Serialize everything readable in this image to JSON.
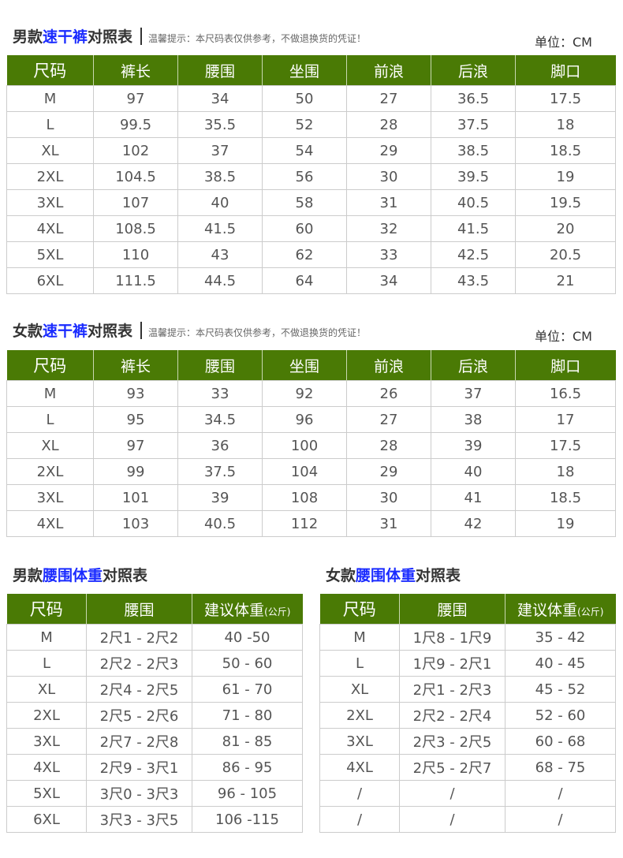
{
  "sections": [
    {
      "title_pre": "男款",
      "title_hl": "速干裤",
      "title_post": "对照表",
      "note": "温馨提示：本尺码表仅供参考，不做退换货的凭证！",
      "unit": "单位：CM",
      "headers": [
        "尺码",
        "裤长",
        "腰围",
        "坐围",
        "前浪",
        "后浪",
        "脚口"
      ],
      "rows": [
        [
          "M",
          "97",
          "34",
          "50",
          "27",
          "36.5",
          "17.5"
        ],
        [
          "L",
          "99.5",
          "35.5",
          "52",
          "28",
          "37.5",
          "18"
        ],
        [
          "XL",
          "102",
          "37",
          "54",
          "29",
          "38.5",
          "18.5"
        ],
        [
          "2XL",
          "104.5",
          "38.5",
          "56",
          "30",
          "39.5",
          "19"
        ],
        [
          "3XL",
          "107",
          "40",
          "58",
          "31",
          "40.5",
          "19.5"
        ],
        [
          "4XL",
          "108.5",
          "41.5",
          "60",
          "32",
          "41.5",
          "20"
        ],
        [
          "5XL",
          "110",
          "43",
          "62",
          "33",
          "42.5",
          "20.5"
        ],
        [
          "6XL",
          "111.5",
          "44.5",
          "64",
          "34",
          "43.5",
          "21"
        ]
      ]
    },
    {
      "title_pre": "女款",
      "title_hl": "速干裤",
      "title_post": "对照表",
      "note": "温馨提示：本尺码表仅供参考，不做退换货的凭证！",
      "unit": "单位：CM",
      "headers": [
        "尺码",
        "裤长",
        "腰围",
        "坐围",
        "前浪",
        "后浪",
        "脚口"
      ],
      "rows": [
        [
          "M",
          "93",
          "33",
          "92",
          "26",
          "37",
          "16.5"
        ],
        [
          "L",
          "95",
          "34.5",
          "96",
          "27",
          "38",
          "17"
        ],
        [
          "XL",
          "97",
          "36",
          "100",
          "28",
          "39",
          "17.5"
        ],
        [
          "2XL",
          "99",
          "37.5",
          "104",
          "29",
          "40",
          "18"
        ],
        [
          "3XL",
          "101",
          "39",
          "108",
          "30",
          "41",
          "18.5"
        ],
        [
          "4XL",
          "103",
          "40.5",
          "112",
          "31",
          "42",
          "19"
        ]
      ]
    },
    {
      "title_pre": "男款",
      "title_hl": "腰围体重",
      "title_post": "对照表",
      "headers": [
        "尺码",
        "腰围",
        "建议体重",
        "(公斤)"
      ],
      "rows": [
        [
          "M",
          "2尺1 - 2尺2",
          "40 -50"
        ],
        [
          "L",
          "2尺2 - 2尺3",
          "50 - 60"
        ],
        [
          "XL",
          "2尺4 - 2尺5",
          "61 - 70"
        ],
        [
          "2XL",
          "2尺5 - 2尺6",
          "71 - 80"
        ],
        [
          "3XL",
          "2尺7 - 2尺8",
          "81 - 85"
        ],
        [
          "4XL",
          "2尺9 - 3尺1",
          "86 - 95"
        ],
        [
          "5XL",
          "3尺0 - 3尺3",
          "96 - 105"
        ],
        [
          "6XL",
          "3尺3 - 3尺5",
          "106 -115"
        ]
      ]
    },
    {
      "title_pre": "女款",
      "title_hl": "腰围体重",
      "title_post": "对照表",
      "headers": [
        "尺码",
        "腰围",
        "建议体重",
        "(公斤)"
      ],
      "rows": [
        [
          "M",
          "1尺8 - 1尺9",
          "35 - 42"
        ],
        [
          "L",
          "1尺9 - 2尺1",
          "40 - 45"
        ],
        [
          "XL",
          "2尺1 - 2尺3",
          "45 - 52"
        ],
        [
          "2XL",
          "2尺2 - 2尺4",
          "52 - 60"
        ],
        [
          "3XL",
          "2尺3 - 2尺5",
          "60 - 68"
        ],
        [
          "4XL",
          "2尺5 - 2尺7",
          "68 - 75"
        ],
        [
          "/",
          "/",
          "/"
        ],
        [
          "/",
          "/",
          "/"
        ]
      ]
    }
  ],
  "colors": {
    "header_bg": "#4a7a05",
    "highlight": "#1a2bff"
  }
}
